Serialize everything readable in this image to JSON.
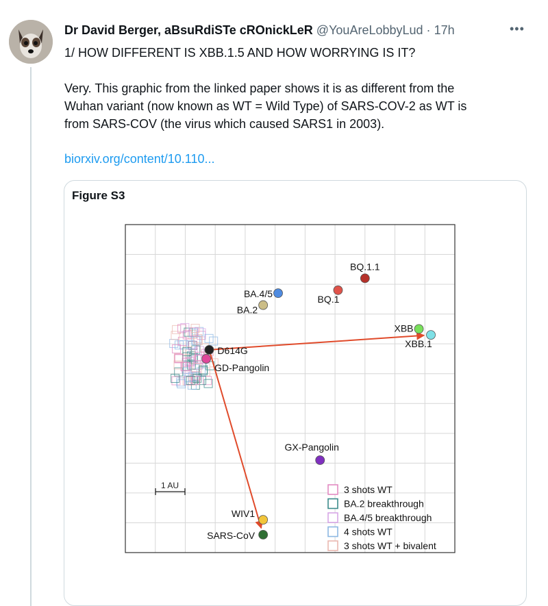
{
  "tweet": {
    "author_name": "Dr David Berger, aBsuRdiSTe cROnickLeR",
    "handle": "@YouAreLobbyLud",
    "separator": "·",
    "time": "17h",
    "more_label": "•••",
    "lines": [
      "1/ HOW DIFFERENT IS XBB.1.5 AND HOW WORRYING IS IT?",
      "",
      "Very. This graphic from the linked paper shows it is as different from the",
      "Wuhan variant (now known as WT = Wild Type) of SARS-COV-2 as WT is",
      "from SARS-COV (the virus which caused SARS1 in 2003)."
    ],
    "link_text": "biorxiv.org/content/10.110..."
  },
  "figure": {
    "title": "Figure S3",
    "scale_label": "1 AU"
  },
  "chart_data": {
    "type": "scatter",
    "title": "",
    "xlabel": "",
    "ylabel": "",
    "grid": true,
    "xlim": [
      0,
      11
    ],
    "ylim": [
      0,
      11
    ],
    "points": [
      {
        "label": "BQ.1.1",
        "x": 8.0,
        "y": 9.2,
        "color": "#b5312a"
      },
      {
        "label": "BQ.1",
        "x": 7.1,
        "y": 8.8,
        "color": "#e0534a"
      },
      {
        "label": "BA.4/5",
        "x": 5.1,
        "y": 8.7,
        "color": "#4f8be0"
      },
      {
        "label": "BA.2",
        "x": 4.6,
        "y": 8.3,
        "color": "#cbbd87"
      },
      {
        "label": "XBB",
        "x": 9.8,
        "y": 7.5,
        "color": "#78e05a"
      },
      {
        "label": "XBB.1",
        "x": 10.2,
        "y": 7.3,
        "color": "#7ee0e6"
      },
      {
        "label": "D614G",
        "x": 2.8,
        "y": 6.8,
        "color": "#222222"
      },
      {
        "label": "GD-Pangolin",
        "x": 2.7,
        "y": 6.5,
        "color": "#e0479b"
      },
      {
        "label": "GX-Pangolin",
        "x": 6.5,
        "y": 3.1,
        "color": "#7f2fbf"
      },
      {
        "label": "WIV1",
        "x": 4.6,
        "y": 1.1,
        "color": "#f2c53a"
      },
      {
        "label": "SARS-CoV",
        "x": 4.6,
        "y": 0.6,
        "color": "#2f6e33"
      }
    ],
    "arrows": [
      {
        "from": "D614G",
        "to": "XBB.1",
        "color": "#e04a2a"
      },
      {
        "from": "D614G",
        "to": "SARS-CoV",
        "color": "#e04a2a"
      }
    ],
    "serum_groups": [
      {
        "label": "3 shots WT",
        "color": "#e38ac2"
      },
      {
        "label": "BA.2 breakthrough",
        "color": "#3b8a8a"
      },
      {
        "label": "BA.4/5 breakthrough",
        "color": "#d7a6e6"
      },
      {
        "label": "4 shots WT",
        "color": "#8cb7e3"
      },
      {
        "label": "3 shots WT + bivalent",
        "color": "#eab8b0"
      }
    ],
    "legend_position": "bottom-right"
  }
}
